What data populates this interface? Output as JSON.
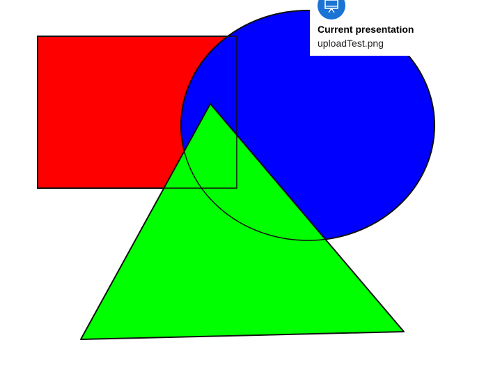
{
  "presentation": {
    "heading": "Current presentation",
    "filename": "uploadTest.png",
    "icon": "presentation-icon",
    "icon_color": "#1b73d3"
  },
  "slide": {
    "shapes": [
      {
        "kind": "rectangle",
        "fill": "#ff0000"
      },
      {
        "kind": "ellipse",
        "fill": "#0000ff"
      },
      {
        "kind": "triangle",
        "fill": "#00ff00"
      }
    ],
    "outline_color": "#111111"
  }
}
